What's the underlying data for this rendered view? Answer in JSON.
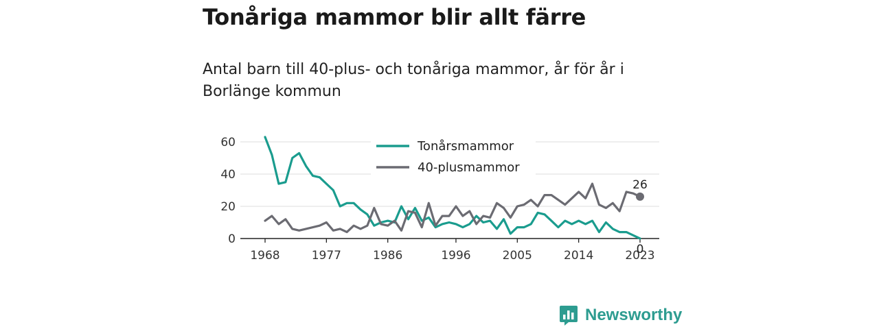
{
  "header": {
    "title": "Tonåriga mammor blir allt färre",
    "subtitle": "Antal barn till 40-plus- och tonåriga mammor, år för år i Borlänge kommun"
  },
  "brand": {
    "name": "Newsworthy",
    "icon": "newsworthy-logo-icon",
    "color": "#2d9c90"
  },
  "chart_data": {
    "type": "line",
    "x": [
      1968,
      1969,
      1970,
      1971,
      1972,
      1973,
      1974,
      1975,
      1976,
      1977,
      1978,
      1979,
      1980,
      1981,
      1982,
      1983,
      1984,
      1985,
      1986,
      1987,
      1988,
      1989,
      1990,
      1991,
      1992,
      1993,
      1994,
      1995,
      1996,
      1997,
      1998,
      1999,
      2000,
      2001,
      2002,
      2003,
      2004,
      2005,
      2006,
      2007,
      2008,
      2009,
      2010,
      2011,
      2012,
      2013,
      2014,
      2015,
      2016,
      2017,
      2018,
      2019,
      2020,
      2021,
      2022,
      2023
    ],
    "series": [
      {
        "name": "Tonårsmammor",
        "color": "#1a9c8e",
        "values": [
          63,
          52,
          34,
          35,
          50,
          53,
          45,
          39,
          38,
          34,
          30,
          20,
          22,
          22,
          18,
          15,
          8,
          10,
          11,
          10,
          20,
          12,
          19,
          11,
          13,
          7,
          9,
          10,
          9,
          7,
          9,
          14,
          10,
          11,
          6,
          12,
          3,
          7,
          7,
          9,
          16,
          15,
          11,
          7,
          11,
          9,
          11,
          9,
          11,
          4,
          10,
          6,
          4,
          4,
          2,
          0
        ]
      },
      {
        "name": "40-plusmammor",
        "color": "#6b6b72",
        "values": [
          11,
          14,
          9,
          12,
          6,
          5,
          6,
          7,
          8,
          10,
          5,
          6,
          4,
          8,
          6,
          8,
          19,
          9,
          8,
          11,
          5,
          17,
          16,
          7,
          22,
          8,
          14,
          14,
          20,
          14,
          17,
          9,
          14,
          13,
          22,
          19,
          13,
          20,
          21,
          24,
          20,
          27,
          27,
          24,
          21,
          25,
          29,
          25,
          34,
          21,
          19,
          22,
          17,
          29,
          28,
          26
        ]
      }
    ],
    "xticks": [
      1968,
      1977,
      1986,
      1996,
      2005,
      2014,
      2023
    ],
    "yticks": [
      0,
      20,
      40,
      60
    ],
    "ylim": [
      0,
      65
    ],
    "xlim": [
      1968,
      2023
    ],
    "grid": "horizontal",
    "legend": "top-center",
    "end_labels": [
      {
        "series": "40-plusmammor",
        "text": "26"
      },
      {
        "series": "Tonårsmammor",
        "text": "0"
      }
    ]
  }
}
